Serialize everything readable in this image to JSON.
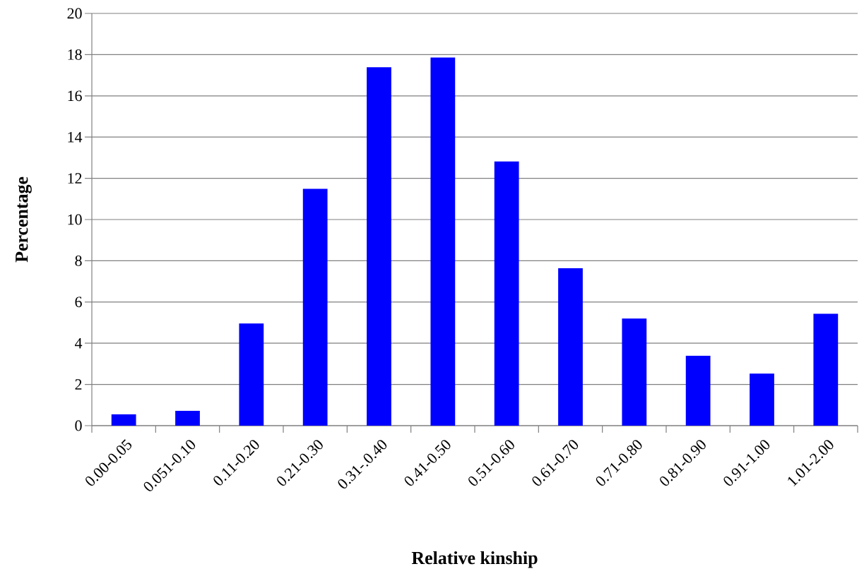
{
  "chart_data": {
    "type": "bar",
    "xlabel": "Relative kinship",
    "ylabel": "Percentage",
    "categories": [
      "0.00-0.05",
      "0.051-0.10",
      "0.11-0.20",
      "0.21-0.30",
      "0.31-.0.40",
      "0.41-0.50",
      "0.51-0.60",
      "0.61-0.70",
      "0.71-0.80",
      "0.81-0.90",
      "0.91-1.00",
      "1.01-2.00"
    ],
    "values": [
      0.55,
      0.72,
      4.96,
      11.49,
      17.39,
      17.86,
      12.82,
      7.64,
      5.2,
      3.39,
      2.53,
      5.43
    ],
    "color": "#0000ff",
    "ylim": [
      0,
      20
    ],
    "yticks": [
      0,
      2,
      4,
      6,
      8,
      10,
      12,
      14,
      16,
      18,
      20
    ],
    "grid": "y"
  }
}
